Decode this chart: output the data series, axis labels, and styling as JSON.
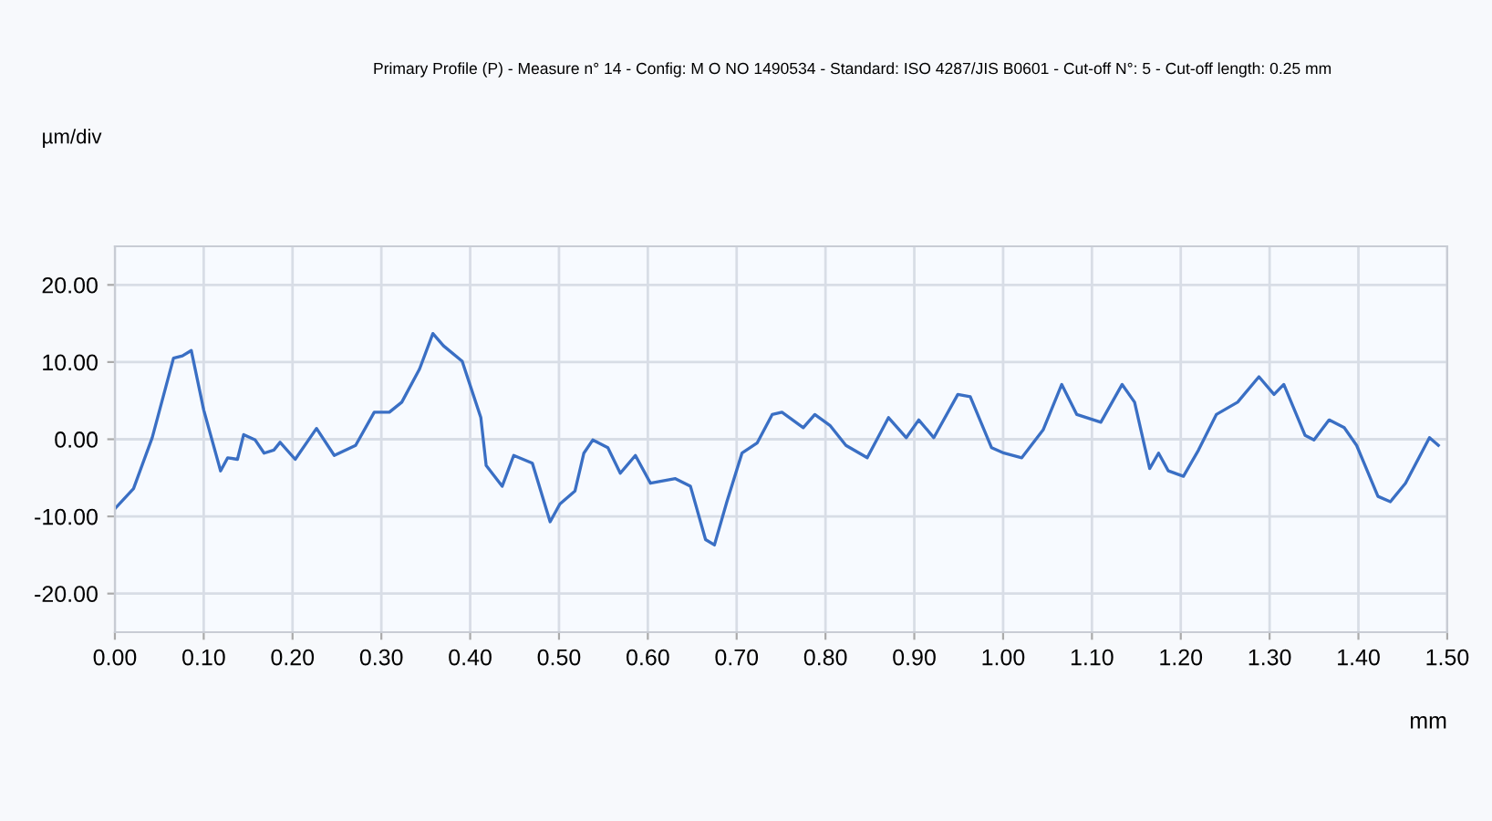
{
  "chart_data": {
    "type": "line",
    "title": "Primary Profile (P) - Measure n° 14 - Config: M O NO 1490534 - Standard: ISO 4287/JIS B0601 - Cut-off N°: 5 - Cut-off length: 0.25 mm",
    "ylabel": "µm/div",
    "xlabel": "mm",
    "xlim": [
      0,
      1.5
    ],
    "ylim": [
      -25,
      25
    ],
    "xticks": [
      {
        "value": 0,
        "label": "0.00"
      },
      {
        "value": 0.1,
        "label": "0.10"
      },
      {
        "value": 0.2,
        "label": "0.20"
      },
      {
        "value": 0.3,
        "label": "0.30"
      },
      {
        "value": 0.4,
        "label": "0.40"
      },
      {
        "value": 0.5,
        "label": "0.50"
      },
      {
        "value": 0.6,
        "label": "0.60"
      },
      {
        "value": 0.7,
        "label": "0.70"
      },
      {
        "value": 0.8,
        "label": "0.80"
      },
      {
        "value": 0.9,
        "label": "0.90"
      },
      {
        "value": 1.0,
        "label": "1.00"
      },
      {
        "value": 1.1,
        "label": "1.10"
      },
      {
        "value": 1.2,
        "label": "1.20"
      },
      {
        "value": 1.3,
        "label": "1.30"
      },
      {
        "value": 1.4,
        "label": "1.40"
      },
      {
        "value": 1.5,
        "label": "1.50"
      }
    ],
    "yticks": [
      {
        "value": -20,
        "label": "-20.00"
      },
      {
        "value": -10,
        "label": "-10.00"
      },
      {
        "value": 0,
        "label": "0.00"
      },
      {
        "value": 10,
        "label": "10.00"
      },
      {
        "value": 20,
        "label": "20.00"
      }
    ],
    "grid": true,
    "legend": false,
    "marker": "none",
    "line_style": "solid",
    "series": [
      {
        "color": "#3a6fc4",
        "x": [
          0,
          0.021,
          0.042,
          0.066,
          0.076,
          0.086,
          0.1,
          0.119,
          0.127,
          0.138,
          0.145,
          0.158,
          0.168,
          0.179,
          0.186,
          0.203,
          0.227,
          0.247,
          0.271,
          0.292,
          0.309,
          0.323,
          0.343,
          0.358,
          0.37,
          0.391,
          0.412,
          0.418,
          0.436,
          0.449,
          0.47,
          0.49,
          0.501,
          0.518,
          0.528,
          0.538,
          0.555,
          0.569,
          0.586,
          0.603,
          0.631,
          0.648,
          0.665,
          0.675,
          0.689,
          0.706,
          0.723,
          0.74,
          0.751,
          0.775,
          0.788,
          0.805,
          0.823,
          0.847,
          0.871,
          0.891,
          0.905,
          0.922,
          0.949,
          0.963,
          0.987,
          1.001,
          1.021,
          1.045,
          1.066,
          1.083,
          1.11,
          1.134,
          1.148,
          1.165,
          1.175,
          1.186,
          1.203,
          1.22,
          1.24,
          1.264,
          1.288,
          1.305,
          1.316,
          1.34,
          1.35,
          1.367,
          1.384,
          1.398,
          1.422,
          1.436,
          1.453,
          1.48,
          1.49
        ],
        "values": [
          -9.0,
          -6.4,
          0.2,
          10.5,
          10.8,
          11.5,
          3.8,
          -4.1,
          -2.4,
          -2.6,
          0.6,
          -0.1,
          -1.8,
          -1.4,
          -0.4,
          -2.6,
          1.4,
          -2.1,
          -0.8,
          3.5,
          3.5,
          4.8,
          9.1,
          13.7,
          12.1,
          10.1,
          2.8,
          -3.4,
          -6.1,
          -2.1,
          -3.1,
          -10.7,
          -8.4,
          -6.7,
          -1.8,
          -0.1,
          -1.1,
          -4.4,
          -2.1,
          -5.7,
          -5.1,
          -6.1,
          -13.0,
          -13.7,
          -8.1,
          -1.8,
          -0.5,
          3.2,
          3.5,
          1.5,
          3.2,
          1.8,
          -0.8,
          -2.4,
          2.8,
          0.2,
          2.5,
          0.2,
          5.8,
          5.5,
          -1.1,
          -1.8,
          -2.4,
          1.2,
          7.1,
          3.2,
          2.2,
          7.1,
          4.8,
          -3.8,
          -1.8,
          -4.1,
          -4.8,
          -1.4,
          3.2,
          4.8,
          8.1,
          5.8,
          7.1,
          0.5,
          -0.1,
          2.5,
          1.5,
          -0.8,
          -7.4,
          -8.1,
          -5.7,
          0.2,
          -0.8
        ]
      }
    ]
  }
}
